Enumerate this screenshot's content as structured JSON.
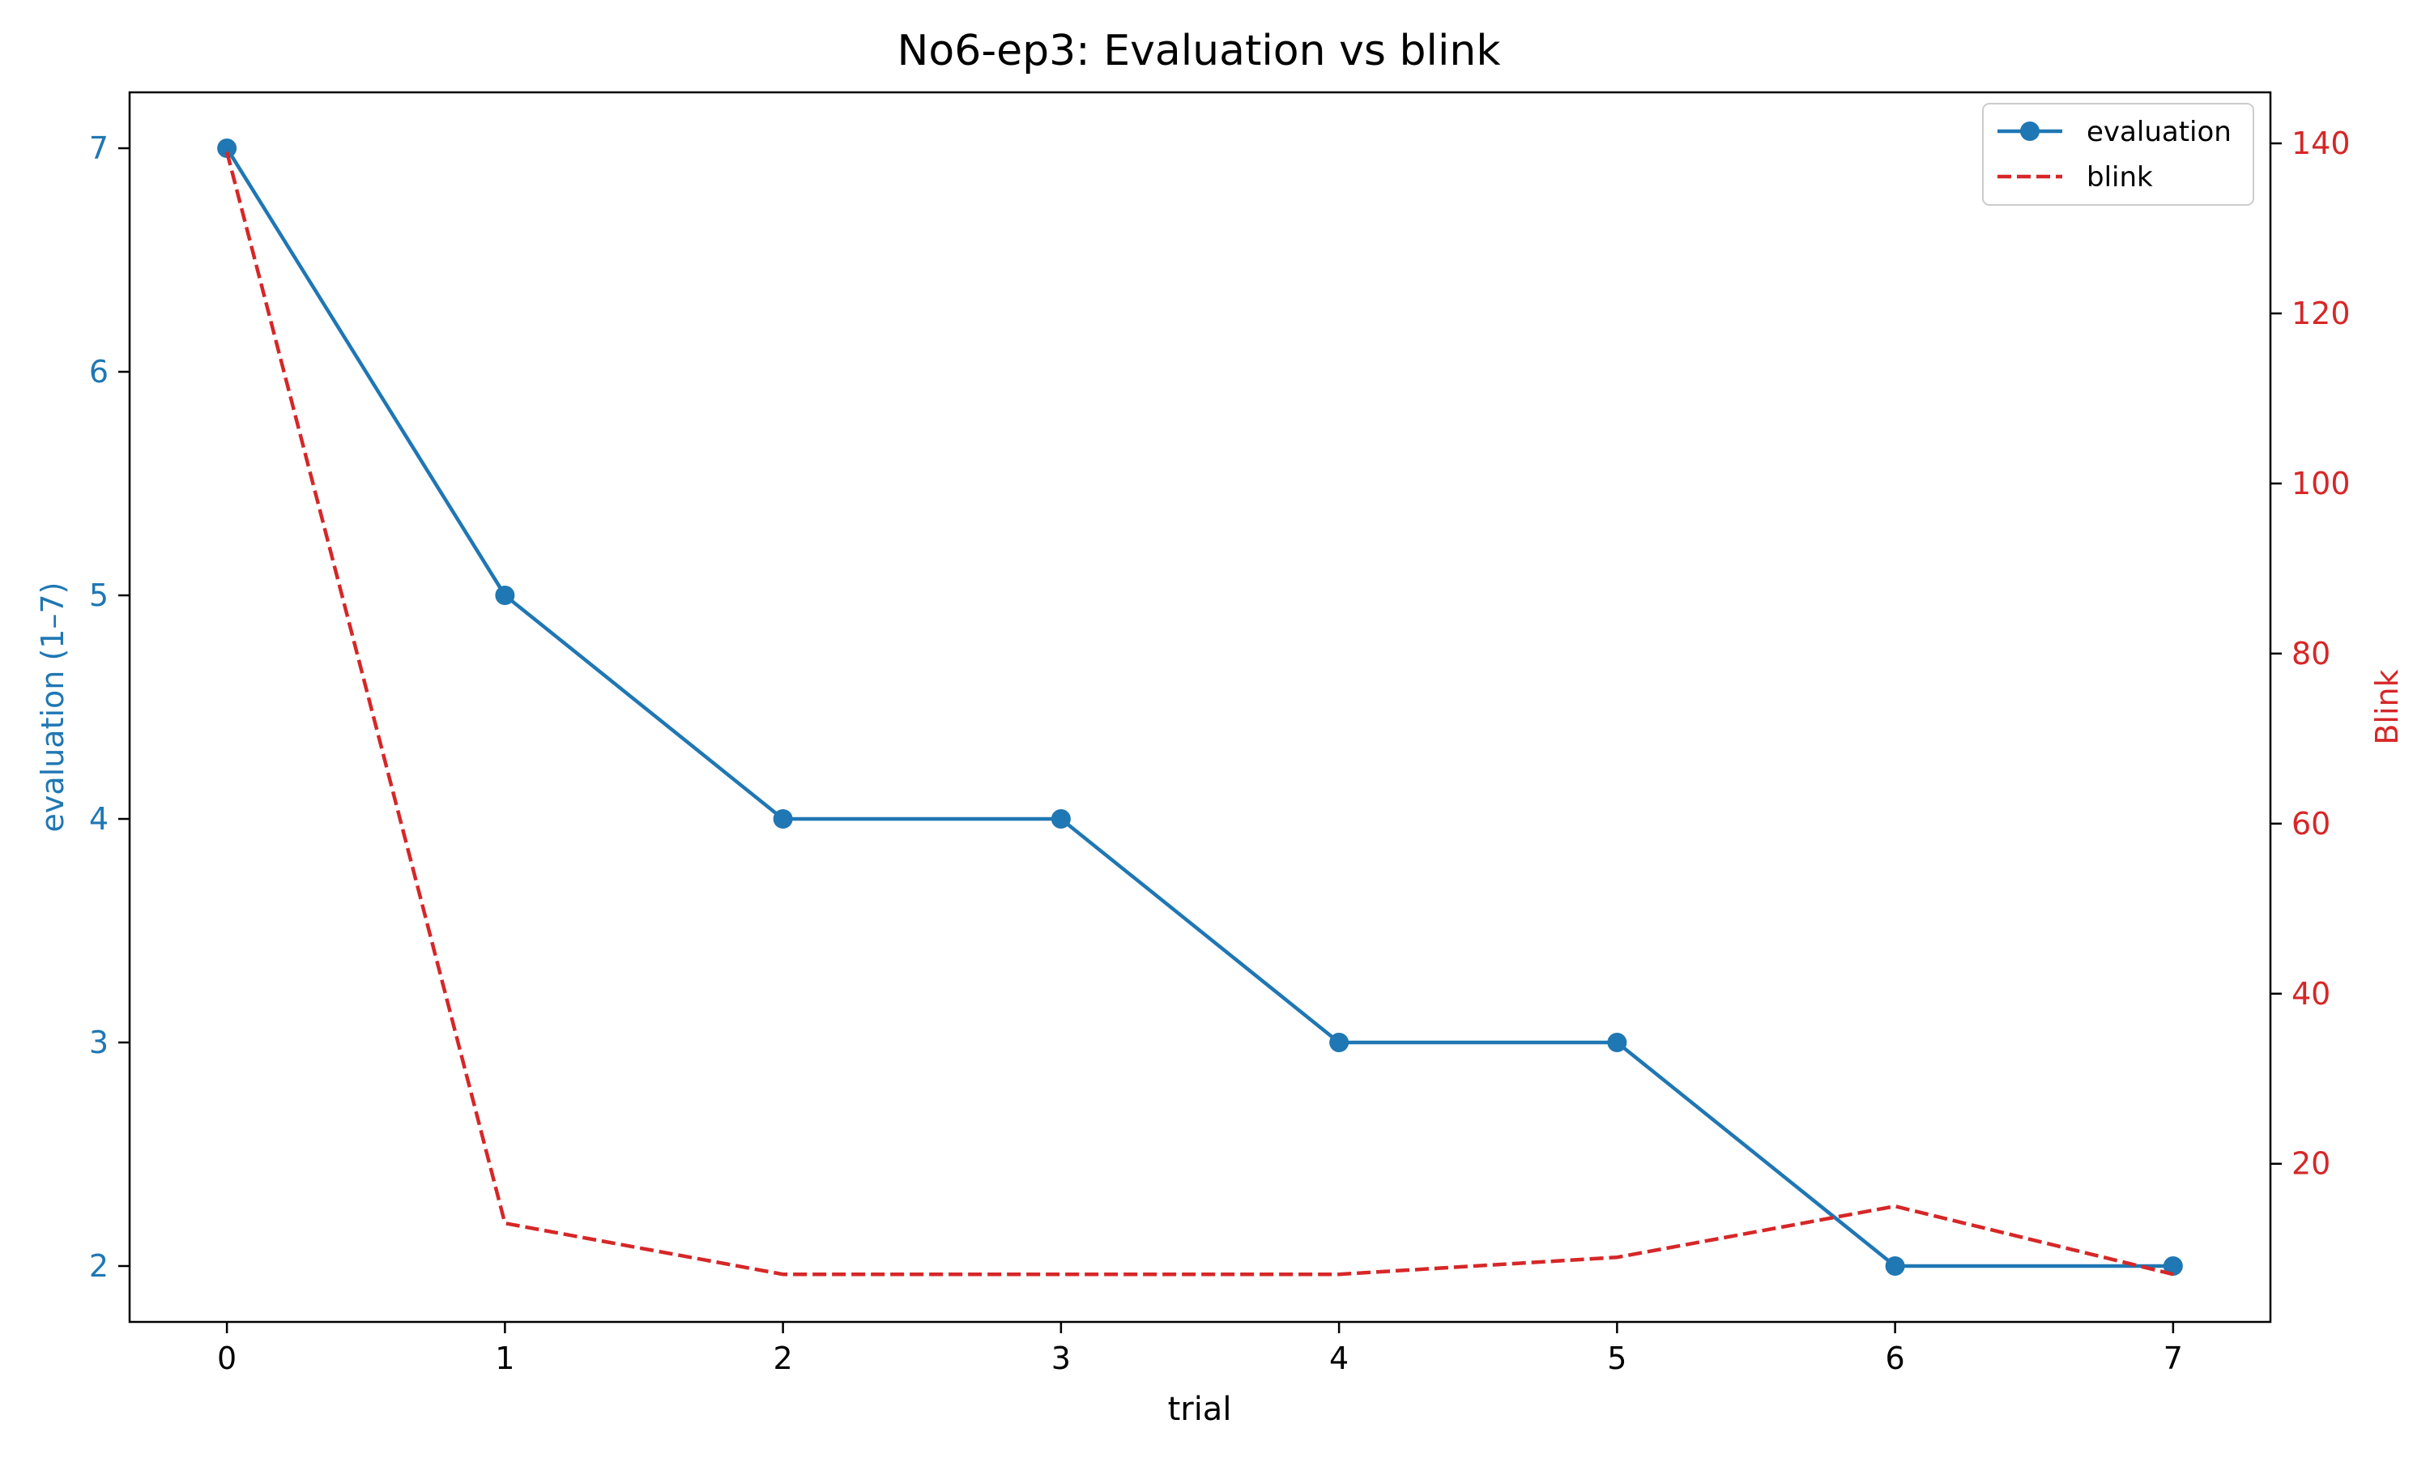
{
  "chart_data": {
    "type": "line",
    "title": "No6-ep3: Evaluation vs blink",
    "xlabel": "trial",
    "ylabel_left": "evaluation (1–7)",
    "ylabel_right": "Blink",
    "x": [
      0,
      1,
      2,
      3,
      4,
      5,
      6,
      7
    ],
    "xlim": [
      -0.35,
      7.35
    ],
    "ylim_left": [
      1.75,
      7.25
    ],
    "ylim_right": [
      1.4,
      146.0
    ],
    "xticks": [
      0,
      1,
      2,
      3,
      4,
      5,
      6,
      7
    ],
    "yticks_left": [
      2,
      3,
      4,
      5,
      6,
      7
    ],
    "yticks_right": [
      20,
      40,
      60,
      80,
      100,
      120,
      140
    ],
    "grid": false,
    "legend_position": "top-right",
    "series": [
      {
        "name": "evaluation",
        "axis": "left",
        "style": "solid",
        "marker": "circle",
        "color": "#1f77b4",
        "values": [
          7,
          5,
          4,
          4,
          3,
          3,
          2,
          2
        ]
      },
      {
        "name": "blink",
        "axis": "right",
        "style": "dashed",
        "marker": "none",
        "color": "#d62728",
        "values": [
          139,
          13,
          7,
          7,
          7,
          9,
          15,
          7
        ]
      }
    ],
    "colors": {
      "left_axis": "#1f77b4",
      "right_axis": "#d62728",
      "frame": "#000000"
    }
  }
}
